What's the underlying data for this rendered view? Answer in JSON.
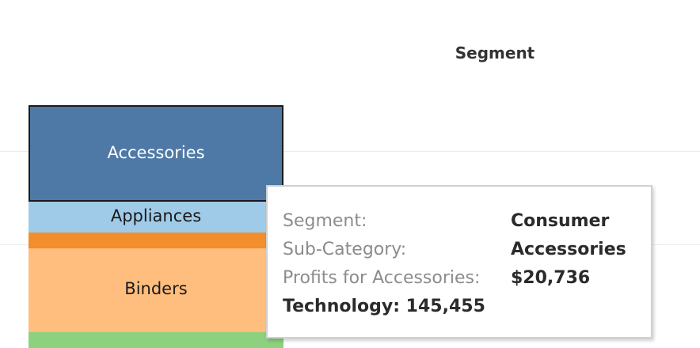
{
  "header": {
    "segment_label": "Segment"
  },
  "chart_data": {
    "type": "bar",
    "orientation": "stacked",
    "selected_category": "Accessories",
    "series": [
      {
        "name": "Accessories",
        "value": 20736,
        "color": "#4e79a7",
        "selected": true
      },
      {
        "name": "Appliances",
        "color": "#a0cbe8"
      },
      {
        "name": "",
        "color": "#f28e2b"
      },
      {
        "name": "Binders",
        "color": "#ffbe7d"
      },
      {
        "name": "",
        "color": "#8cd17d"
      }
    ],
    "grid": true
  },
  "tooltip": {
    "segment_key": "Segment:",
    "segment_value": "Consumer",
    "subcat_key": "Sub-Category:",
    "subcat_value": "Accessories",
    "profit_key": "Profits for Accessories:",
    "profit_value": "$20,736",
    "summary": "Technology: 145,455"
  }
}
